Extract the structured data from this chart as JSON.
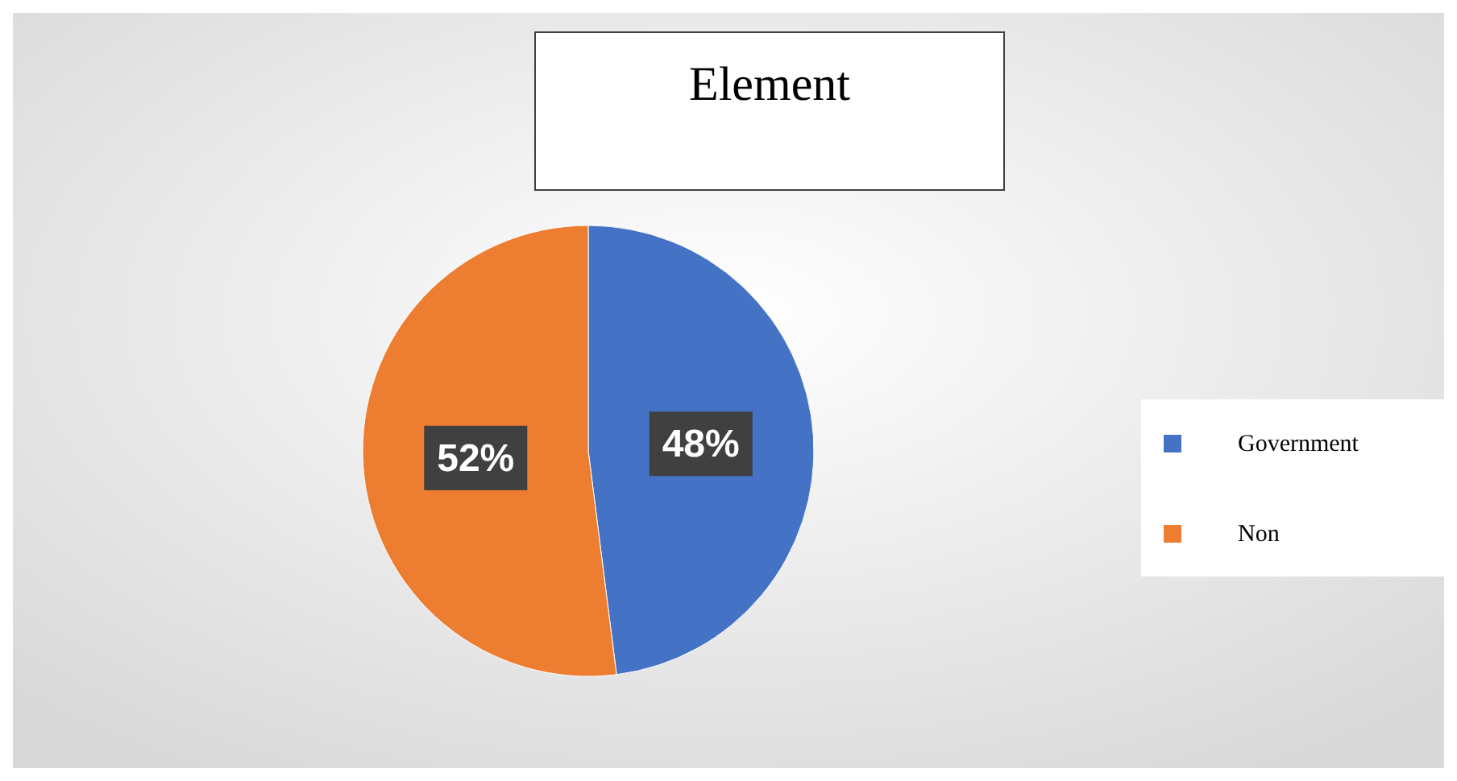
{
  "chart_data": {
    "type": "pie",
    "title": "Element",
    "categories": [
      "Government",
      "Non"
    ],
    "values": [
      48,
      52
    ],
    "colors": [
      "#4472c4",
      "#ed7d31"
    ],
    "value_labels": [
      "48%",
      "52%"
    ],
    "legend": "right"
  }
}
